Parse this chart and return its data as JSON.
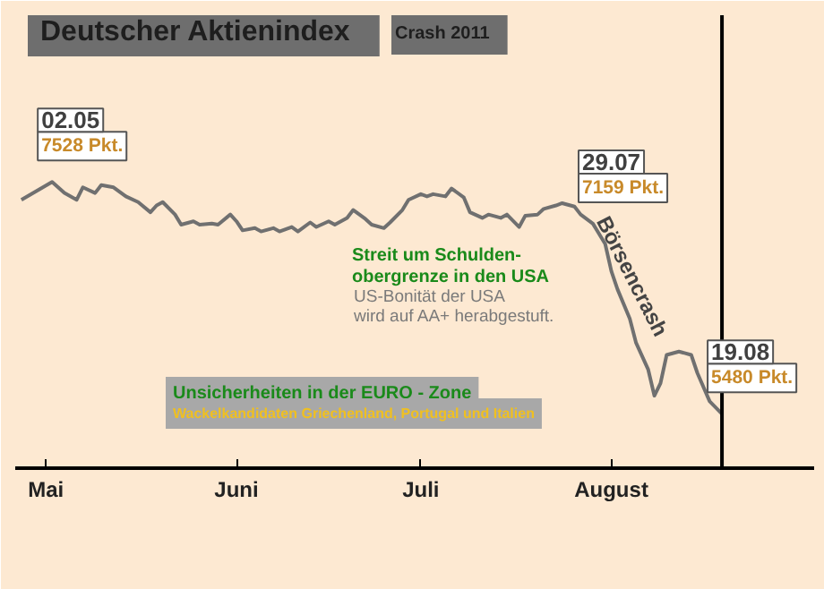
{
  "chart_data": {
    "type": "line",
    "title": "Deutscher Aktienindex",
    "subtitle": "Crash 2011",
    "x": [
      "2011-04-27",
      "2011-05-02",
      "2011-05-04",
      "2011-05-06",
      "2011-05-07",
      "2011-05-09",
      "2011-05-10",
      "2011-05-12",
      "2011-05-14",
      "2011-05-16",
      "2011-05-18",
      "2011-05-19",
      "2011-05-20",
      "2011-05-22",
      "2011-05-23",
      "2011-05-25",
      "2011-05-26",
      "2011-05-28",
      "2011-05-29",
      "2011-05-31",
      "2011-06-01",
      "2011-06-02",
      "2011-06-04",
      "2011-06-05",
      "2011-06-07",
      "2011-06-08",
      "2011-06-10",
      "2011-06-11",
      "2011-06-13",
      "2011-06-14",
      "2011-06-16",
      "2011-06-17",
      "2011-06-19",
      "2011-06-20",
      "2011-06-22",
      "2011-06-23",
      "2011-06-25",
      "2011-06-26",
      "2011-06-28",
      "2011-06-29",
      "2011-07-01",
      "2011-07-02",
      "2011-07-03",
      "2011-07-05",
      "2011-07-06",
      "2011-07-08",
      "2011-07-09",
      "2011-07-11",
      "2011-07-12",
      "2011-07-14",
      "2011-07-15",
      "2011-07-17",
      "2011-07-18",
      "2011-07-20",
      "2011-07-21",
      "2011-07-23",
      "2011-07-24",
      "2011-07-26",
      "2011-07-27",
      "2011-07-29",
      "2011-07-31",
      "2011-08-01",
      "2011-08-02",
      "2011-08-04",
      "2011-08-05",
      "2011-08-07",
      "2011-08-08",
      "2011-08-09",
      "2011-08-10",
      "2011-08-12",
      "2011-08-14",
      "2011-08-15",
      "2011-08-17",
      "2011-08-19"
    ],
    "series": [
      {
        "color": "#707070",
        "values": [
          7370,
          7528,
          7430,
          7370,
          7480,
          7430,
          7500,
          7480,
          7400,
          7350,
          7260,
          7320,
          7350,
          7240,
          7150,
          7180,
          7150,
          7160,
          7150,
          7240,
          7180,
          7100,
          7120,
          7090,
          7120,
          7090,
          7130,
          7090,
          7170,
          7130,
          7180,
          7150,
          7210,
          7280,
          7200,
          7150,
          7120,
          7170,
          7280,
          7370,
          7420,
          7400,
          7420,
          7400,
          7470,
          7390,
          7260,
          7210,
          7240,
          7210,
          7240,
          7130,
          7230,
          7240,
          7290,
          7320,
          7340,
          7310,
          7240,
          7159,
          6980,
          6740,
          6580,
          6320,
          6110,
          5870,
          5640,
          5750,
          6000,
          6030,
          6000,
          5840,
          5590,
          5480
        ],
        "value_labels": [
          null,
          "7528 Pkt.",
          null,
          null,
          null,
          null,
          null,
          null,
          null,
          null,
          null,
          null,
          null,
          null,
          null,
          null,
          null,
          null,
          null,
          null,
          null,
          null,
          null,
          null,
          null,
          null,
          null,
          null,
          null,
          null,
          null,
          null,
          null,
          null,
          null,
          null,
          null,
          null,
          null,
          null,
          null,
          null,
          null,
          null,
          null,
          null,
          null,
          null,
          null,
          null,
          null,
          null,
          null,
          null,
          null,
          null,
          null,
          null,
          null,
          "7159 Pkt.",
          null,
          null,
          null,
          null,
          null,
          null,
          null,
          null,
          null,
          null,
          null,
          null,
          null,
          "5480 Pkt."
        ]
      }
    ],
    "xlim": [
      "2011-04-26",
      "2011-09-03"
    ],
    "xticks": [
      {
        "value": "2011-05-01",
        "label": "Mai"
      },
      {
        "value": "2011-06-01",
        "label": "Juni"
      },
      {
        "value": "2011-07-01",
        "label": "Juli"
      },
      {
        "value": "2011-08-01",
        "label": "August"
      }
    ],
    "ylim": [
      5000,
      9000
    ],
    "tick_labels": "x",
    "grid": false,
    "marker": "none",
    "line_style": "solid",
    "ref_lines": [
      {
        "axis": "x",
        "value": "2011-08-19",
        "color": "#000000"
      }
    ],
    "annotations": [
      {
        "text": "02.05",
        "x": "2011-05-02",
        "y": 7528
      },
      {
        "text": "29.07",
        "x": "2011-07-29",
        "y": 7159
      },
      {
        "text": "19.08",
        "x": "2011-08-19",
        "y": 5480
      },
      "Streit um Schulden-",
      "obergrenze in den USA",
      "US-Bonität der USA",
      "wird auf AA+ herabgestuft.",
      "Börsencrash",
      "Unsicherheiten in der EURO - Zone",
      "Wackelkandidaten Griechenland, Portugal und Italien"
    ]
  }
}
